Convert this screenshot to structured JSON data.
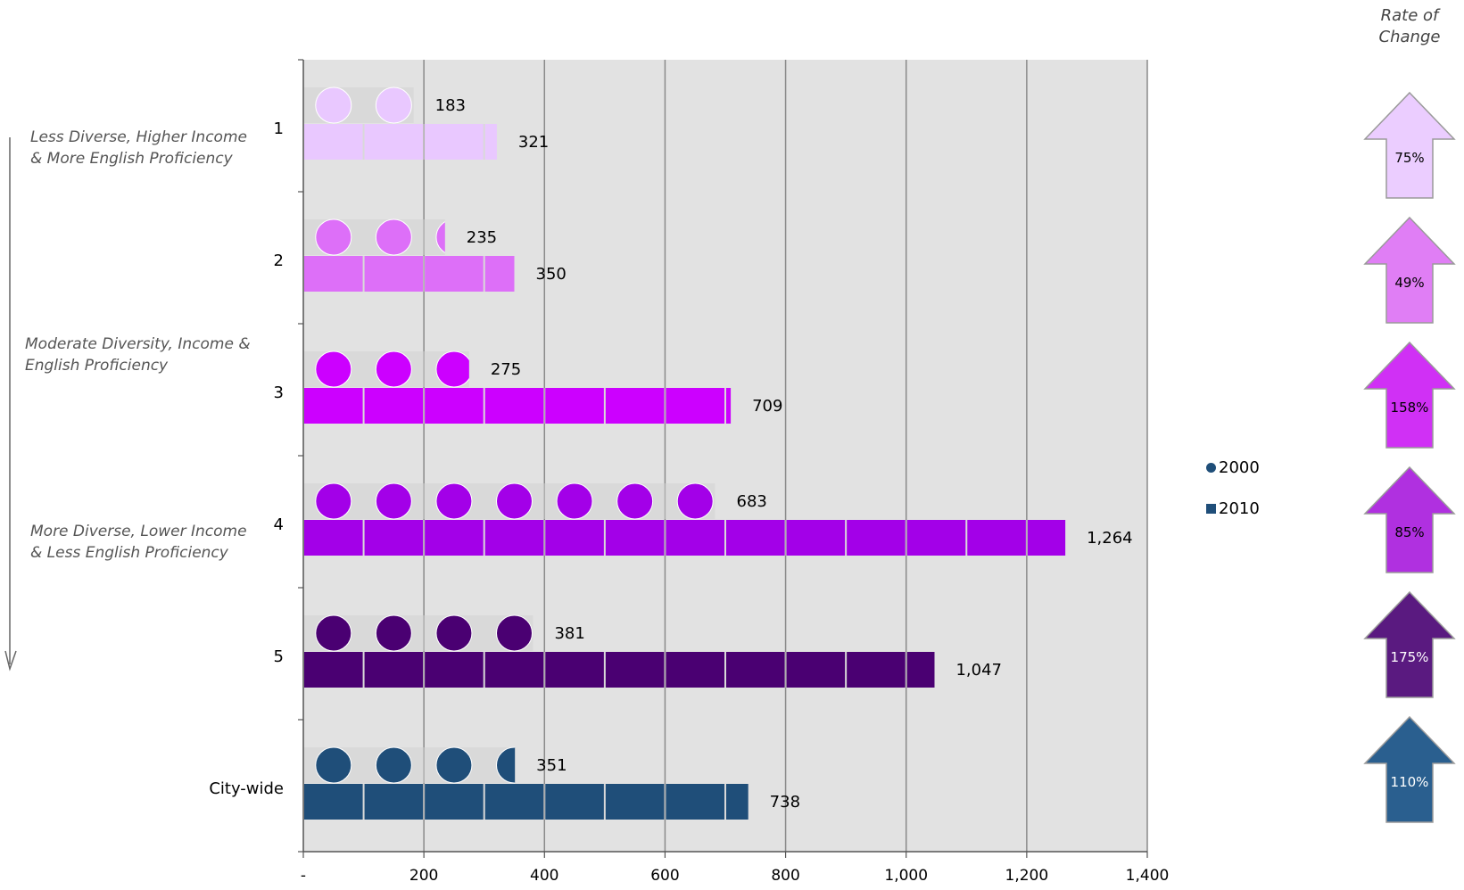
{
  "chart_data": {
    "type": "bar",
    "categories": [
      "1",
      "2",
      "3",
      "4",
      "5",
      "City-wide"
    ],
    "series": [
      {
        "name": "2000",
        "marker": "circle",
        "values": [
          183,
          235,
          275,
          683,
          381,
          351
        ]
      },
      {
        "name": "2010",
        "marker": "square",
        "values": [
          321,
          350,
          709,
          1264,
          1047,
          738
        ]
      }
    ],
    "value_labels": {
      "2000": [
        "183",
        "235",
        "275",
        "683",
        "381",
        "351"
      ],
      "2010": [
        "321",
        "350",
        "709",
        "1,264",
        "1,047",
        "738"
      ]
    },
    "colors": [
      "#e9c8ff",
      "#dd6ff8",
      "#cc00ff",
      "#a300e8",
      "#4a0072",
      "#1f4e79"
    ],
    "x_ticks": [
      "-",
      "200",
      "400",
      "600",
      "800",
      "1,000",
      "1,200",
      "1,400"
    ],
    "xlim": [
      0,
      1400
    ],
    "grid": true,
    "legend_position": "right",
    "orientation": "horizontal",
    "rate_of_change": [
      "75%",
      "49%",
      "158%",
      "85%",
      "175%",
      "110%"
    ],
    "arrow_colors": [
      "#ebcdff",
      "#e07ef5",
      "#d030f5",
      "#b030e0",
      "#5a1a80",
      "#2a5f8f"
    ]
  },
  "annotations": {
    "top": "Less Diverse, Higher Income\n& More English Proficiency",
    "middle": "Moderate Diversity, Income &\nEnglish Proficiency",
    "bottom": "More Diverse, Lower Income\n& Less English Proficiency"
  },
  "rate_of_change_title": "Rate of\nChange"
}
